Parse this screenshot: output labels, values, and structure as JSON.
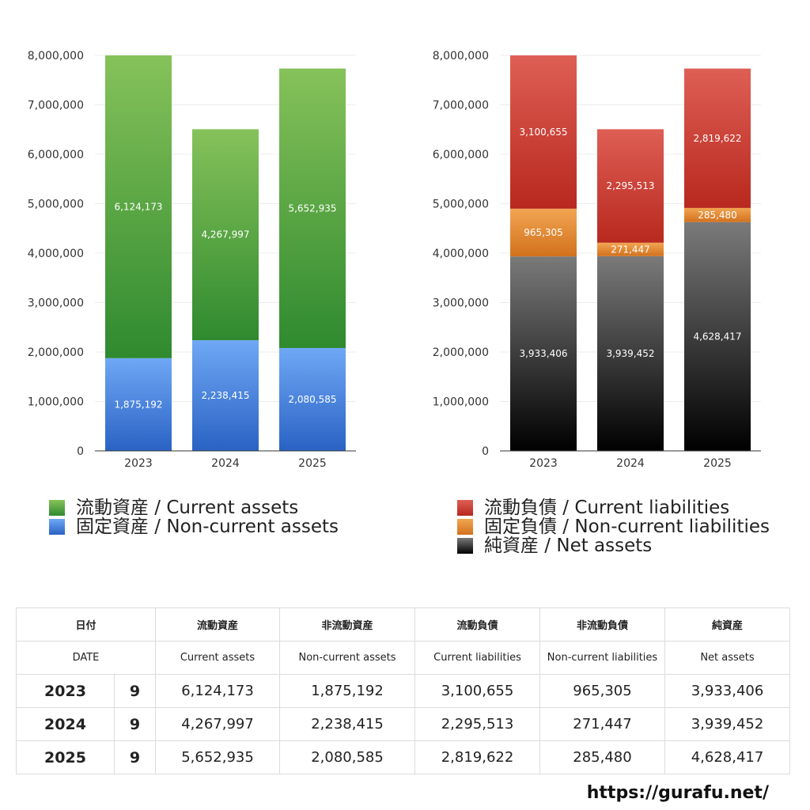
{
  "colors": {
    "current_assets": [
      "#86c25a",
      "#2f8a2f"
    ],
    "noncurrent_assets": [
      "#6fa8f5",
      "#2a62c4"
    ],
    "current_liabilities": [
      "#de5f55",
      "#b8281e"
    ],
    "noncurrent_liabilities": [
      "#f2a552",
      "#d2711d"
    ],
    "net_assets": [
      "#7a7a7a",
      "#000000"
    ]
  },
  "chart_data": [
    {
      "type": "bar",
      "stacked": true,
      "categories": [
        "2023",
        "2024",
        "2025"
      ],
      "ylim": [
        0,
        8000000
      ],
      "yticks": [
        "0",
        "1,000,000",
        "2,000,000",
        "3,000,000",
        "4,000,000",
        "5,000,000",
        "6,000,000",
        "7,000,000",
        "8,000,000"
      ],
      "series": [
        {
          "name": "固定資産 / Non-current assets",
          "key": "noncurrent_assets",
          "values": [
            1875192,
            2238415,
            2080585
          ],
          "labels": [
            "1,875,192",
            "2,238,415",
            "2,080,585"
          ]
        },
        {
          "name": "流動資産 / Current assets",
          "key": "current_assets",
          "values": [
            6124173,
            4267997,
            5652935
          ],
          "labels": [
            "6,124,173",
            "4,267,997",
            "5,652,935"
          ]
        }
      ],
      "legend": "bottom"
    },
    {
      "type": "bar",
      "stacked": true,
      "categories": [
        "2023",
        "2024",
        "2025"
      ],
      "ylim": [
        0,
        8000000
      ],
      "yticks": [
        "0",
        "1,000,000",
        "2,000,000",
        "3,000,000",
        "4,000,000",
        "5,000,000",
        "6,000,000",
        "7,000,000",
        "8,000,000"
      ],
      "series": [
        {
          "name": "純資産 / Net assets",
          "key": "net_assets",
          "values": [
            3933406,
            3939452,
            4628417
          ],
          "labels": [
            "3,933,406",
            "3,939,452",
            "4,628,417"
          ]
        },
        {
          "name": "固定負債 / Non-current liabilities",
          "key": "noncurrent_liabilities",
          "values": [
            965305,
            271447,
            285480
          ],
          "labels": [
            "965,305",
            "271,447",
            "285,480"
          ]
        },
        {
          "name": "流動負債 / Current liabilities",
          "key": "current_liabilities",
          "values": [
            3100655,
            2295513,
            2819622
          ],
          "labels": [
            "3,100,655",
            "2,295,513",
            "2,819,622"
          ]
        }
      ],
      "legend": "bottom"
    }
  ],
  "legend_left": [
    {
      "text": "流動資産 / Current assets",
      "key": "current_assets"
    },
    {
      "text": "固定資産 / Non-current assets",
      "key": "noncurrent_assets"
    }
  ],
  "legend_right": [
    {
      "text": "流動負債 / Current liabilities",
      "key": "current_liabilities"
    },
    {
      "text": "固定負債 / Non-current liabilities",
      "key": "noncurrent_liabilities"
    },
    {
      "text": "純資産 / Net assets",
      "key": "net_assets"
    }
  ],
  "table": {
    "header_jp": [
      "日付",
      "流動資産",
      "非流動資産",
      "流動負債",
      "非流動負債",
      "純資産"
    ],
    "header_en": [
      "DATE",
      "Current assets",
      "Non-current assets",
      "Current liabilities",
      "Non-current liabilities",
      "Net assets"
    ],
    "rows": [
      {
        "year": "2023",
        "month": "9",
        "cells": [
          "6,124,173",
          "1,875,192",
          "3,100,655",
          "965,305",
          "3,933,406"
        ]
      },
      {
        "year": "2024",
        "month": "9",
        "cells": [
          "4,267,997",
          "2,238,415",
          "2,295,513",
          "271,447",
          "3,939,452"
        ]
      },
      {
        "year": "2025",
        "month": "9",
        "cells": [
          "5,652,935",
          "2,080,585",
          "2,819,622",
          "285,480",
          "4,628,417"
        ]
      }
    ]
  },
  "footer_url": "https://gurafu.net/"
}
